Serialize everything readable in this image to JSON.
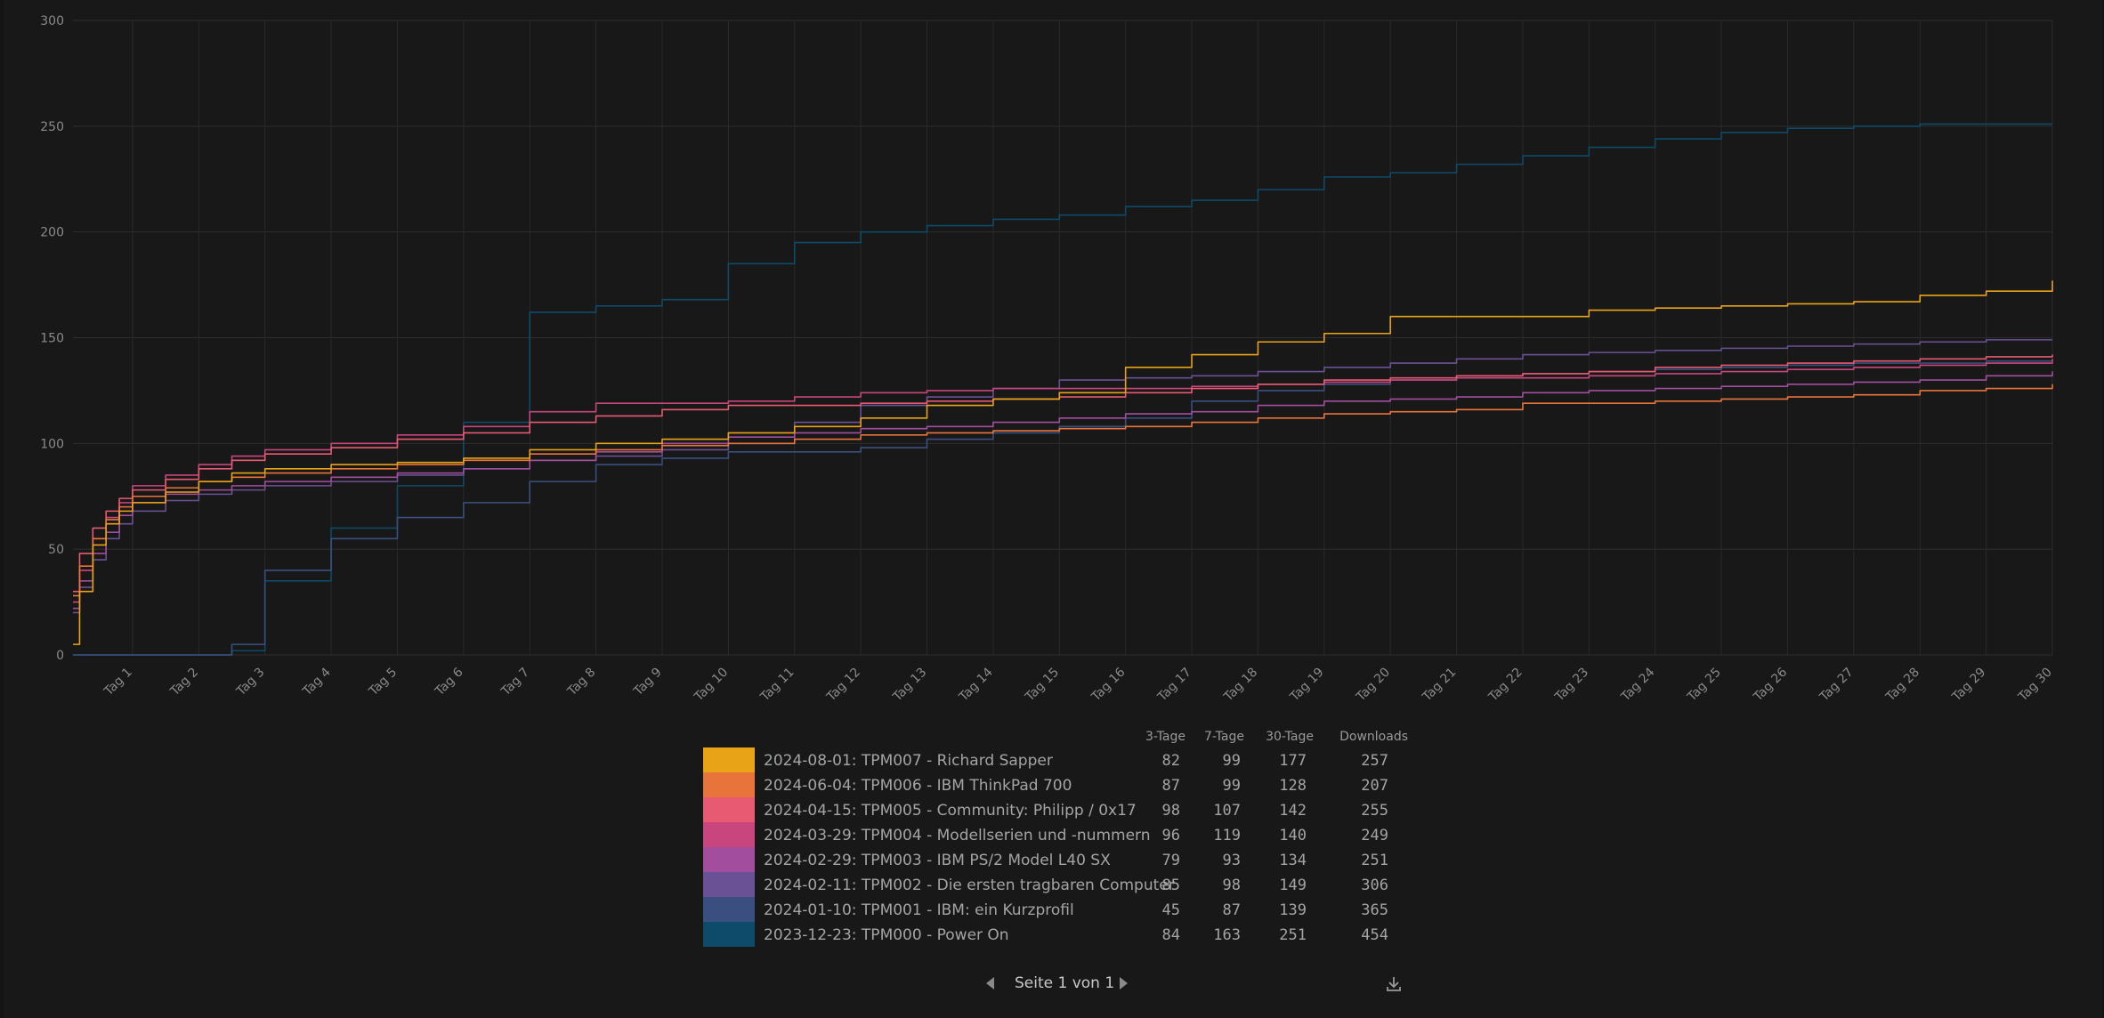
{
  "chart_data": {
    "type": "line",
    "ylim": [
      0,
      300
    ],
    "yticks": [
      0,
      50,
      100,
      150,
      200,
      250,
      300
    ],
    "xlim": [
      0.1,
      30
    ],
    "grid": true,
    "x_ticks": [
      "Tag 1",
      "Tag 2",
      "Tag 3",
      "Tag 4",
      "Tag 5",
      "Tag 6",
      "Tag 7",
      "Tag 8",
      "Tag 9",
      "Tag 10",
      "Tag 11",
      "Tag 12",
      "Tag 13",
      "Tag 14",
      "Tag 15",
      "Tag 16",
      "Tag 17",
      "Tag 18",
      "Tag 19",
      "Tag 20",
      "Tag 21",
      "Tag 22",
      "Tag 23",
      "Tag 24",
      "Tag 25",
      "Tag 26",
      "Tag 27",
      "Tag 28",
      "Tag 29",
      "Tag 30"
    ],
    "x": [
      0.1,
      0.2,
      0.4,
      0.6,
      0.8,
      1,
      1.5,
      2,
      2.5,
      3,
      4,
      5,
      6,
      7,
      8,
      9,
      10,
      11,
      12,
      13,
      14,
      15,
      16,
      17,
      18,
      19,
      20,
      21,
      22,
      23,
      24,
      25,
      26,
      27,
      28,
      29,
      30
    ],
    "series": [
      {
        "name": "2024-08-01: TPM007 - Richard Sapper",
        "color": "#e8a317",
        "values": [
          5,
          30,
          52,
          62,
          68,
          72,
          77,
          82,
          86,
          88,
          90,
          91,
          93,
          97,
          100,
          102,
          105,
          108,
          112,
          118,
          121,
          124,
          136,
          142,
          148,
          152,
          160,
          160,
          160,
          163,
          164,
          165,
          166,
          167,
          170,
          172,
          177
        ]
      },
      {
        "name": "2024-06-04: TPM006 - IBM ThinkPad 700",
        "color": "#e8743b",
        "values": [
          28,
          42,
          55,
          64,
          70,
          75,
          79,
          82,
          84,
          86,
          88,
          90,
          92,
          95,
          97,
          99,
          100,
          102,
          104,
          105,
          106,
          107,
          108,
          110,
          112,
          114,
          115,
          116,
          119,
          119,
          120,
          121,
          122,
          123,
          125,
          126,
          128
        ]
      },
      {
        "name": "2024-04-15: TPM005 - Community: Philipp / 0x17",
        "color": "#e85a71",
        "values": [
          30,
          48,
          60,
          68,
          74,
          78,
          83,
          88,
          92,
          95,
          98,
          102,
          105,
          110,
          113,
          116,
          118,
          118,
          119,
          120,
          121,
          122,
          124,
          126,
          128,
          130,
          131,
          132,
          133,
          134,
          136,
          137,
          138,
          139,
          140,
          141,
          142
        ]
      },
      {
        "name": "2024-03-29: TPM004 - Modellserien und -nummern",
        "color": "#c8467d",
        "values": [
          25,
          40,
          55,
          65,
          72,
          80,
          85,
          90,
          94,
          97,
          100,
          104,
          108,
          115,
          119,
          119,
          120,
          122,
          124,
          125,
          126,
          126,
          126,
          127,
          128,
          129,
          130,
          131,
          131,
          132,
          133,
          134,
          135,
          136,
          137,
          138,
          140
        ]
      },
      {
        "name": "2024-02-29: TPM003 - IBM PS/2 Model L40 SX",
        "color": "#a24d9e",
        "values": [
          22,
          35,
          48,
          58,
          66,
          72,
          76,
          78,
          80,
          82,
          84,
          86,
          88,
          92,
          96,
          100,
          103,
          105,
          107,
          108,
          110,
          112,
          114,
          115,
          118,
          120,
          121,
          122,
          124,
          125,
          126,
          127,
          128,
          129,
          130,
          132,
          134
        ]
      },
      {
        "name": "2024-02-11: TPM002 - Die ersten tragbaren Computer",
        "color": "#6a5094",
        "values": [
          20,
          32,
          45,
          55,
          62,
          68,
          73,
          76,
          78,
          80,
          82,
          85,
          88,
          92,
          94,
          97,
          100,
          110,
          118,
          122,
          126,
          130,
          131,
          132,
          134,
          136,
          138,
          140,
          142,
          143,
          144,
          145,
          146,
          147,
          148,
          149,
          149
        ]
      },
      {
        "name": "2024-01-10: TPM001 - IBM: ein Kurzprofil",
        "color": "#3a4f80",
        "values": [
          0,
          0,
          0,
          0,
          0,
          0,
          0,
          0,
          5,
          40,
          55,
          65,
          72,
          82,
          90,
          93,
          96,
          96,
          98,
          102,
          105,
          108,
          112,
          120,
          125,
          128,
          130,
          132,
          133,
          134,
          135,
          136,
          137,
          138,
          138,
          139,
          139
        ]
      },
      {
        "name": "2023-12-23: TPM000 - Power On",
        "color": "#0e4a6a",
        "values": [
          0,
          0,
          0,
          0,
          0,
          0,
          0,
          0,
          2,
          35,
          60,
          80,
          110,
          162,
          165,
          168,
          185,
          195,
          200,
          203,
          206,
          208,
          212,
          215,
          220,
          226,
          228,
          232,
          236,
          240,
          244,
          247,
          249,
          250,
          251,
          251,
          251
        ]
      }
    ]
  },
  "legend": {
    "headers": [
      "3-Tage",
      "7-Tage",
      "30-Tage",
      "Downloads"
    ],
    "rows": [
      {
        "label": "2024-08-01: TPM007 - Richard Sapper",
        "color": "#e8a317",
        "d3": "82",
        "d7": "99",
        "d30": "177",
        "downloads": "257"
      },
      {
        "label": "2024-06-04: TPM006 - IBM ThinkPad 700",
        "color": "#e8743b",
        "d3": "87",
        "d7": "99",
        "d30": "128",
        "downloads": "207"
      },
      {
        "label": "2024-04-15: TPM005 - Community: Philipp / 0x17",
        "color": "#e85a71",
        "d3": "98",
        "d7": "107",
        "d30": "142",
        "downloads": "255"
      },
      {
        "label": "2024-03-29: TPM004 - Modellserien und -nummern",
        "color": "#c8467d",
        "d3": "96",
        "d7": "119",
        "d30": "140",
        "downloads": "249"
      },
      {
        "label": "2024-02-29: TPM003 - IBM PS/2 Model L40 SX",
        "color": "#a24d9e",
        "d3": "79",
        "d7": "93",
        "d30": "134",
        "downloads": "251"
      },
      {
        "label": "2024-02-11: TPM002 - Die ersten tragbaren Computer",
        "color": "#6a5094",
        "d3": "85",
        "d7": "98",
        "d30": "149",
        "downloads": "306"
      },
      {
        "label": "2024-01-10: TPM001 - IBM: ein Kurzprofil",
        "color": "#3a4f80",
        "d3": "45",
        "d7": "87",
        "d30": "139",
        "downloads": "365"
      },
      {
        "label": "2023-12-23: TPM000 - Power On",
        "color": "#0e4a6a",
        "d3": "84",
        "d7": "163",
        "d30": "251",
        "downloads": "454"
      }
    ]
  },
  "pager": {
    "text": "Seite 1 von 1",
    "prev_icon": "caret-left-icon",
    "next_icon": "caret-right-icon"
  },
  "toolbar": {
    "download_icon": "download-icon"
  }
}
